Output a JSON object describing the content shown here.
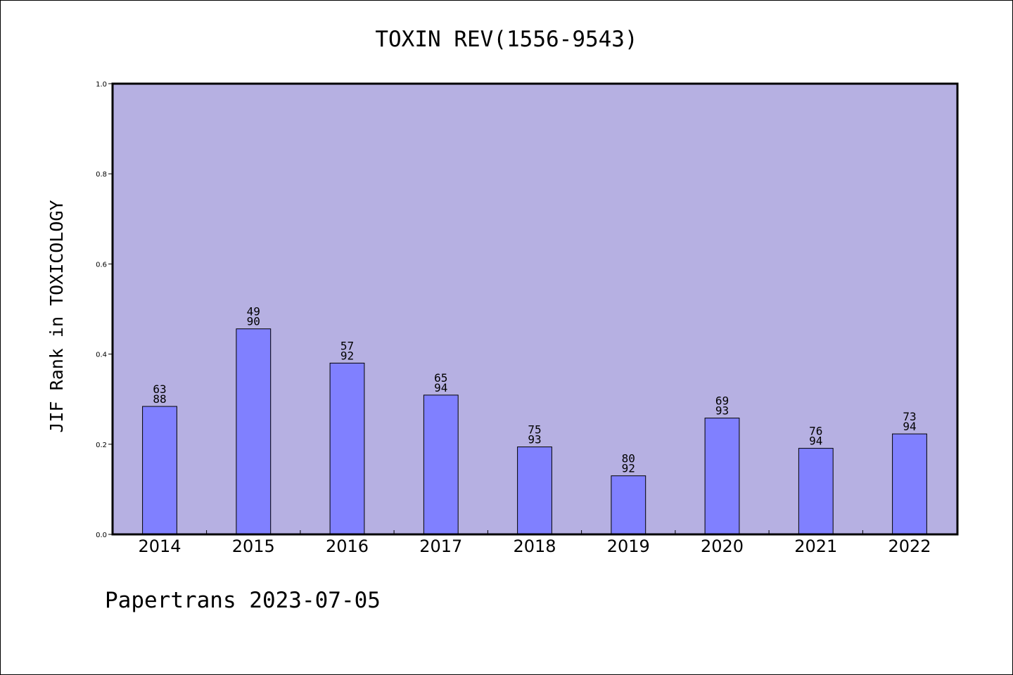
{
  "chart_data": {
    "type": "bar",
    "title": "TOXIN REV(1556-9543)",
    "xlabel": "",
    "ylabel": "JIF Rank in TOXICOLOGY",
    "ylim": [
      0.0,
      1.0
    ],
    "yticks": [
      "0.0",
      "0.2",
      "0.4",
      "0.6",
      "0.8",
      "1.0"
    ],
    "categories": [
      "2014",
      "2015",
      "2016",
      "2017",
      "2018",
      "2019",
      "2020",
      "2021",
      "2022"
    ],
    "values": [
      0.284,
      0.456,
      0.38,
      0.309,
      0.194,
      0.13,
      0.258,
      0.191,
      0.223
    ],
    "rank": [
      "63",
      "49",
      "57",
      "65",
      "75",
      "80",
      "69",
      "76",
      "73"
    ],
    "total": [
      "88",
      "90",
      "92",
      "94",
      "93",
      "92",
      "93",
      "94",
      "94"
    ],
    "grid": false,
    "legend": "none",
    "colors": {
      "plot_background": "#b6b0e2",
      "bar_fill": "#8080ff",
      "bar_edge": "#000000"
    }
  },
  "footer": {
    "text": "Papertrans 2023-07-05"
  }
}
